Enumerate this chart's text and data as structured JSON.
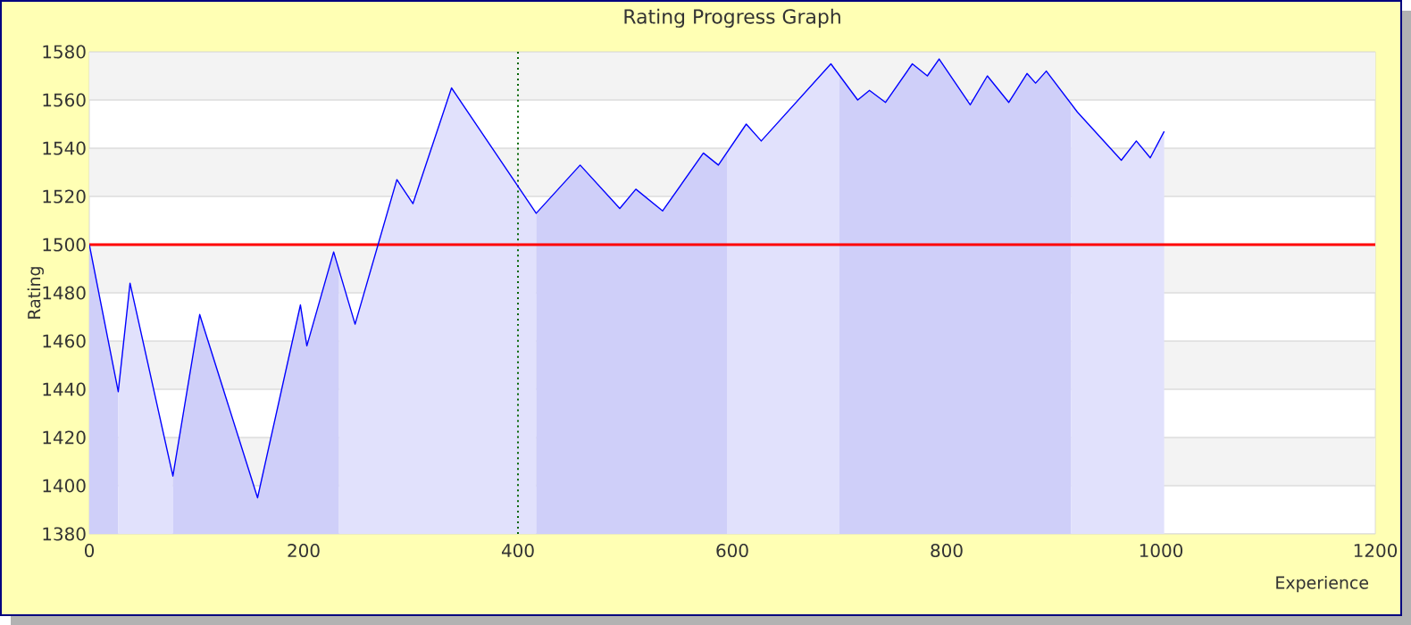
{
  "chart_data": {
    "type": "line",
    "title": "Rating Progress Graph",
    "xlabel": "Experience",
    "ylabel": "Rating",
    "xlim": [
      0,
      1200
    ],
    "xticks": [
      0,
      200,
      400,
      600,
      800,
      1000,
      1200
    ],
    "ylim": [
      1380,
      1580
    ],
    "yticks": [
      1380,
      1400,
      1420,
      1440,
      1460,
      1480,
      1500,
      1520,
      1540,
      1560,
      1580
    ],
    "grid": "y",
    "marker": "none",
    "series": [
      {
        "type": "area",
        "color": "#cfcff9",
        "x": [
          0,
          27
        ],
        "values": [
          1500,
          1439
        ]
      },
      {
        "type": "area",
        "color": "#e1e1fc",
        "x": [
          27,
          38,
          78
        ],
        "values": [
          1439,
          1484,
          1404
        ]
      },
      {
        "type": "area",
        "color": "#cfcff9",
        "x": [
          78,
          103,
          157,
          197,
          203,
          228,
          233
        ],
        "values": [
          1404,
          1471,
          1395,
          1475,
          1458,
          1497,
          1490
        ]
      },
      {
        "type": "area",
        "color": "#e1e1fc",
        "x": [
          233,
          248,
          287,
          302,
          338,
          417
        ],
        "values": [
          1490,
          1467,
          1527,
          1517,
          1565,
          1513
        ]
      },
      {
        "type": "area",
        "color": "#cfcff9",
        "x": [
          417,
          458,
          495,
          510,
          535,
          573,
          587,
          595
        ],
        "values": [
          1513,
          1533,
          1515,
          1523,
          1514,
          1538,
          1533,
          1538
        ]
      },
      {
        "type": "area",
        "color": "#e1e1fc",
        "x": [
          595,
          613,
          627,
          692,
          700
        ],
        "values": [
          1538,
          1550,
          1543,
          1575,
          1570
        ]
      },
      {
        "type": "area",
        "color": "#cfcff9",
        "x": [
          700,
          717,
          728,
          743,
          768,
          782,
          793,
          822,
          838,
          858,
          875,
          883,
          893,
          916
        ],
        "values": [
          1570,
          1560,
          1564,
          1559,
          1575,
          1570,
          1577,
          1558,
          1570,
          1559,
          1571,
          1567,
          1572,
          1558
        ]
      },
      {
        "type": "area",
        "color": "#e1e1fc",
        "x": [
          916,
          922,
          963,
          977,
          990,
          1003
        ],
        "values": [
          1558,
          1555,
          1535,
          1543,
          1536,
          1547
        ]
      },
      {
        "color": "#0000ff",
        "line_style": "solid",
        "x": [
          0,
          27,
          38,
          78,
          103,
          157,
          197,
          203,
          228,
          248,
          287,
          302,
          338,
          417,
          458,
          495,
          510,
          535,
          573,
          587,
          613,
          627,
          692,
          717,
          728,
          743,
          768,
          782,
          793,
          822,
          838,
          858,
          875,
          883,
          893,
          922,
          963,
          977,
          990,
          1003
        ],
        "values": [
          1500,
          1439,
          1484,
          1404,
          1471,
          1395,
          1475,
          1458,
          1497,
          1467,
          1527,
          1517,
          1565,
          1513,
          1533,
          1515,
          1523,
          1514,
          1538,
          1533,
          1550,
          1543,
          1575,
          1560,
          1564,
          1559,
          1575,
          1570,
          1577,
          1558,
          1570,
          1559,
          1571,
          1567,
          1572,
          1555,
          1535,
          1543,
          1536,
          1547
        ]
      }
    ],
    "ref_lines": [
      {
        "axis": "y",
        "value": 1500,
        "color": "#ff0000",
        "line_style": "solid"
      },
      {
        "axis": "x",
        "value": 400,
        "color": "#006400",
        "line_style": "dotted"
      }
    ]
  }
}
